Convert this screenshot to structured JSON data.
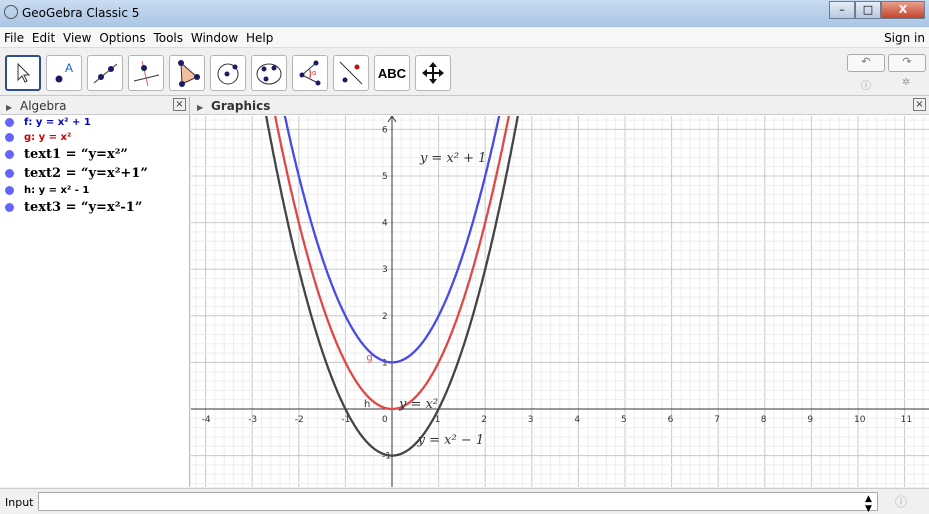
{
  "window": {
    "title": "GeoGebra Classic 5",
    "controls": [
      "–",
      "□",
      "X"
    ]
  },
  "menu": {
    "items": [
      "File",
      "Edit",
      "View",
      "Options",
      "Tools",
      "Window",
      "Help"
    ],
    "sign_in": "Sign in"
  },
  "toolbar": {
    "tools": [
      "move-tool",
      "point-tool",
      "line-tool",
      "perpendicular-line-tool",
      "polygon-tool",
      "circle-tool",
      "circle-three-points-tool",
      "angle-tool",
      "reflect-tool",
      "text-tool",
      "move-graphics-tool"
    ],
    "text_tool_label": "ABC",
    "undo": "↶",
    "redo": "↷"
  },
  "algebra": {
    "title": "Algebra",
    "close": "×",
    "items": [
      {
        "text": "f: y = x² + 1",
        "color": "#0000cc",
        "style": "func"
      },
      {
        "text": "g: y = x²",
        "color": "#cc0000",
        "style": "func"
      },
      {
        "text": "text1 = “y=x²”",
        "color": "#000000",
        "style": "text"
      },
      {
        "text": "text2 = “y=x²+1”",
        "color": "#000000",
        "style": "text"
      },
      {
        "text": "h: y = x² - 1",
        "color": "#000000",
        "style": "func"
      },
      {
        "text": "text3 = “y=x²-1”",
        "color": "#000000",
        "style": "text"
      }
    ]
  },
  "graphics": {
    "title": "Graphics",
    "close": "×",
    "xrange": [
      -4.3,
      11.5
    ],
    "yrange": [
      -1.6,
      6.3
    ],
    "x_ticks": [
      "-4",
      "-3",
      "-2",
      "-1",
      "0",
      "1",
      "2",
      "3",
      "4",
      "5",
      "6",
      "7",
      "8",
      "9",
      "10",
      "11"
    ],
    "y_ticks": [
      "-1",
      "1",
      "2",
      "3",
      "4",
      "5",
      "6"
    ],
    "functions": [
      {
        "name": "f",
        "expr": "x^2+1",
        "color": "#4a4ae8",
        "shift": 1
      },
      {
        "name": "g",
        "expr": "x^2",
        "color": "#e04848",
        "shift": 0
      },
      {
        "name": "h",
        "expr": "x^2-1",
        "color": "#444444",
        "shift": -1
      }
    ],
    "labels": {
      "g": "g",
      "h": "h"
    },
    "texts": [
      "y = x² + 1",
      "y = x²",
      "y = x² − 1"
    ],
    "grid": true
  },
  "input": {
    "label": "Input",
    "value": "",
    "help": "?"
  }
}
